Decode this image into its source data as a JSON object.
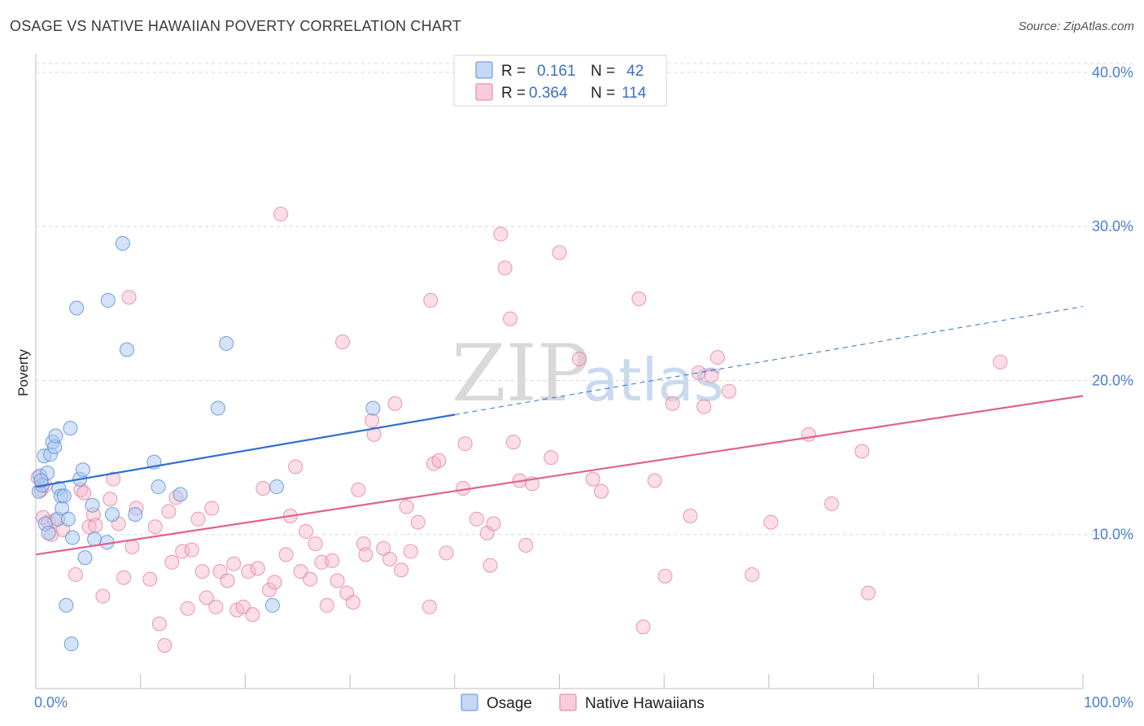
{
  "title": "OSAGE VS NATIVE HAWAIIAN POVERTY CORRELATION CHART",
  "source": "Source: ZipAtlas.com",
  "colors": {
    "osage": "#a9c8f0",
    "osage_stroke": "#5b8fd8",
    "osage_line": "#2f6fd0",
    "hawaiian": "#f7b6c9",
    "hawaiian_stroke": "#e37ea0",
    "hawaiian_line": "#e0618e",
    "tick_label": "#4a7fd0",
    "grid": "#d8d8d8"
  },
  "legend": {
    "rows": [
      {
        "r_label": "R =",
        "r_value": "0.161",
        "n_label": "N =",
        "n_value": "42"
      },
      {
        "r_label": "R =",
        "r_value": "0.364",
        "n_label": "N =",
        "n_value": "114"
      }
    ]
  },
  "chart_data": {
    "type": "scatter",
    "title": "OSAGE VS NATIVE HAWAIIAN POVERTY CORRELATION CHART",
    "xlabel": "",
    "ylabel": "Poverty",
    "xlim": [
      0,
      100
    ],
    "ylim": [
      0,
      41
    ],
    "x_tick_labels": [
      "0.0%",
      "100.0%"
    ],
    "y_ticks": [
      10,
      20,
      30,
      40
    ],
    "y_tick_labels": [
      "10.0%",
      "20.0%",
      "30.0%",
      "40.0%"
    ],
    "grid": true,
    "legend_position": "top-center",
    "series": [
      {
        "name": "Osage",
        "trend": {
          "x0": 0,
          "y0": 13.1,
          "x1_solid": 40,
          "x1": 100,
          "y1": 24.8
        },
        "points": [
          [
            0.3,
            12.8
          ],
          [
            0.4,
            13.8
          ],
          [
            0.6,
            13.2
          ],
          [
            0.8,
            15.1
          ],
          [
            0.9,
            10.7
          ],
          [
            1.1,
            14.0
          ],
          [
            1.2,
            10.1
          ],
          [
            1.4,
            15.2
          ],
          [
            1.6,
            16.0
          ],
          [
            1.8,
            15.7
          ],
          [
            1.9,
            16.4
          ],
          [
            2.1,
            11.0
          ],
          [
            2.2,
            13.0
          ],
          [
            2.4,
            12.5
          ],
          [
            2.5,
            11.7
          ],
          [
            2.7,
            12.5
          ],
          [
            2.9,
            5.4
          ],
          [
            3.1,
            11.0
          ],
          [
            3.3,
            16.9
          ],
          [
            3.4,
            2.9
          ],
          [
            3.5,
            9.8
          ],
          [
            3.9,
            24.7
          ],
          [
            4.2,
            13.6
          ],
          [
            4.5,
            14.2
          ],
          [
            4.7,
            8.5
          ],
          [
            5.4,
            11.9
          ],
          [
            5.6,
            9.7
          ],
          [
            6.8,
            9.5
          ],
          [
            6.9,
            25.2
          ],
          [
            7.3,
            11.3
          ],
          [
            8.3,
            28.9
          ],
          [
            8.7,
            22.0
          ],
          [
            9.5,
            11.3
          ],
          [
            11.3,
            14.7
          ],
          [
            11.7,
            13.1
          ],
          [
            13.8,
            12.6
          ],
          [
            17.4,
            18.2
          ],
          [
            18.2,
            22.4
          ],
          [
            22.6,
            5.4
          ],
          [
            23.0,
            13.1
          ],
          [
            32.2,
            18.2
          ],
          [
            0.5,
            13.5
          ]
        ]
      },
      {
        "name": "Native Hawaiians",
        "trend": {
          "x0": 0,
          "y0": 8.7,
          "x1": 100,
          "y1": 19.0
        },
        "points": [
          [
            0.2,
            13.7
          ],
          [
            0.5,
            12.9
          ],
          [
            0.7,
            11.1
          ],
          [
            0.9,
            13.2
          ],
          [
            1.2,
            10.8
          ],
          [
            1.5,
            10.0
          ],
          [
            1.8,
            10.9
          ],
          [
            2.6,
            10.3
          ],
          [
            3.8,
            7.4
          ],
          [
            4.3,
            12.9
          ],
          [
            4.6,
            12.7
          ],
          [
            5.1,
            10.5
          ],
          [
            5.5,
            11.3
          ],
          [
            5.7,
            10.6
          ],
          [
            6.4,
            6.0
          ],
          [
            7.1,
            12.3
          ],
          [
            7.4,
            13.6
          ],
          [
            7.9,
            10.7
          ],
          [
            8.4,
            7.2
          ],
          [
            8.9,
            25.4
          ],
          [
            9.2,
            9.2
          ],
          [
            9.6,
            11.7
          ],
          [
            10.9,
            7.1
          ],
          [
            11.4,
            10.5
          ],
          [
            11.8,
            4.2
          ],
          [
            12.3,
            2.8
          ],
          [
            12.7,
            11.5
          ],
          [
            13.0,
            8.2
          ],
          [
            13.4,
            12.4
          ],
          [
            14.0,
            8.9
          ],
          [
            14.5,
            5.2
          ],
          [
            14.9,
            9.0
          ],
          [
            15.5,
            11.0
          ],
          [
            15.9,
            7.6
          ],
          [
            16.3,
            5.9
          ],
          [
            16.8,
            11.7
          ],
          [
            17.2,
            5.3
          ],
          [
            17.6,
            7.6
          ],
          [
            18.3,
            7.0
          ],
          [
            18.9,
            8.1
          ],
          [
            19.2,
            5.1
          ],
          [
            19.8,
            5.3
          ],
          [
            20.3,
            7.6
          ],
          [
            20.7,
            4.8
          ],
          [
            21.2,
            7.8
          ],
          [
            21.7,
            13.0
          ],
          [
            22.3,
            6.4
          ],
          [
            22.8,
            6.9
          ],
          [
            23.4,
            30.8
          ],
          [
            23.9,
            8.7
          ],
          [
            24.3,
            11.2
          ],
          [
            24.8,
            14.4
          ],
          [
            25.3,
            7.6
          ],
          [
            25.8,
            10.2
          ],
          [
            26.2,
            7.1
          ],
          [
            26.7,
            9.4
          ],
          [
            27.3,
            8.2
          ],
          [
            27.8,
            5.4
          ],
          [
            28.3,
            8.3
          ],
          [
            28.8,
            7.0
          ],
          [
            29.3,
            22.5
          ],
          [
            29.7,
            6.2
          ],
          [
            30.3,
            5.6
          ],
          [
            30.8,
            12.9
          ],
          [
            31.3,
            9.4
          ],
          [
            31.5,
            8.7
          ],
          [
            32.1,
            17.4
          ],
          [
            32.3,
            16.5
          ],
          [
            33.2,
            9.1
          ],
          [
            33.8,
            8.4
          ],
          [
            34.3,
            18.5
          ],
          [
            34.9,
            7.7
          ],
          [
            35.4,
            11.8
          ],
          [
            35.8,
            8.9
          ],
          [
            36.5,
            10.8
          ],
          [
            37.6,
            5.3
          ],
          [
            38.0,
            14.6
          ],
          [
            38.5,
            14.8
          ],
          [
            37.7,
            25.2
          ],
          [
            39.2,
            8.8
          ],
          [
            41.0,
            15.9
          ],
          [
            40.8,
            13.0
          ],
          [
            42.1,
            11.0
          ],
          [
            43.1,
            10.1
          ],
          [
            43.7,
            10.7
          ],
          [
            43.4,
            8.0
          ],
          [
            44.4,
            29.5
          ],
          [
            44.8,
            27.3
          ],
          [
            45.3,
            24.0
          ],
          [
            45.6,
            16.0
          ],
          [
            46.2,
            13.5
          ],
          [
            46.8,
            9.3
          ],
          [
            47.4,
            13.3
          ],
          [
            49.2,
            15.0
          ],
          [
            50.0,
            28.3
          ],
          [
            51.9,
            21.4
          ],
          [
            53.2,
            13.6
          ],
          [
            54.0,
            12.8
          ],
          [
            57.6,
            25.3
          ],
          [
            58.0,
            4.0
          ],
          [
            59.1,
            13.5
          ],
          [
            60.1,
            7.3
          ],
          [
            60.8,
            18.5
          ],
          [
            62.5,
            11.2
          ],
          [
            63.3,
            20.5
          ],
          [
            63.8,
            18.3
          ],
          [
            64.5,
            20.3
          ],
          [
            65.1,
            21.5
          ],
          [
            66.2,
            19.3
          ],
          [
            68.4,
            7.4
          ],
          [
            70.2,
            10.8
          ],
          [
            73.8,
            16.5
          ],
          [
            76.0,
            12.0
          ],
          [
            78.9,
            15.4
          ],
          [
            79.5,
            6.2
          ],
          [
            92.1,
            21.2
          ]
        ]
      }
    ]
  },
  "bottom_legend": [
    {
      "label": "Osage"
    },
    {
      "label": "Native Hawaiians"
    }
  ],
  "watermark": {
    "zip": "ZIP",
    "atlas": "atlas"
  }
}
